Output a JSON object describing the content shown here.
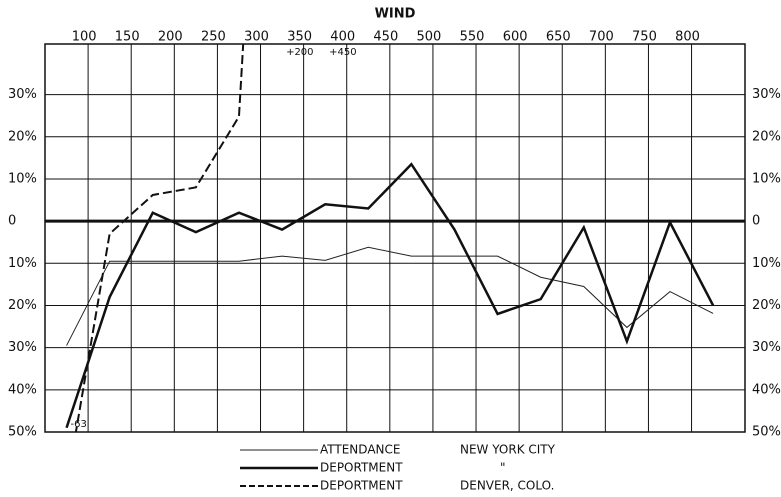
{
  "chart_data": {
    "type": "line",
    "title": "WIND",
    "x": [
      75,
      125,
      175,
      225,
      275,
      325,
      375,
      425,
      475,
      525,
      575,
      625,
      675,
      725,
      775,
      825
    ],
    "xlim": [
      50,
      862
    ],
    "xticks": [
      100,
      150,
      200,
      250,
      300,
      350,
      400,
      450,
      500,
      550,
      600,
      650,
      700,
      750,
      800
    ],
    "ylim": [
      -50,
      42
    ],
    "yticks": [
      {
        "value": 30,
        "label": "30%"
      },
      {
        "value": 20,
        "label": "20%"
      },
      {
        "value": 10,
        "label": "10%"
      },
      0,
      {
        "value": -10,
        "label": "10%"
      },
      {
        "value": -20,
        "label": "20%"
      },
      {
        "value": -30,
        "label": "30%"
      },
      {
        "value": -40,
        "label": "40%"
      },
      {
        "value": -50,
        "label": "50%"
      }
    ],
    "grid": true,
    "series": [
      {
        "name": "ATTENDANCE",
        "color": "#222222",
        "linewidth": 1,
        "dashed": false,
        "values": [
          -29.5,
          -9.5,
          -9.5,
          -9.5,
          -9.5,
          -8.3,
          -9.3,
          -6.2,
          -8.3,
          -8.3,
          -8.3,
          -13.3,
          -15.5,
          -25.2,
          -16.7,
          -21.9
        ]
      },
      {
        "name": "DEPORTMENT",
        "color": "#111111",
        "linewidth": 2.5,
        "dashed": false,
        "values": [
          -49,
          -18,
          2,
          -2.6,
          2,
          -2,
          4,
          3,
          13.5,
          -2,
          -22,
          -18.5,
          -1.5,
          -28.5,
          -0.3,
          -20
        ]
      },
      {
        "name": "DEPORTMENT",
        "color": "#111111",
        "linewidth": 2,
        "dashed": true,
        "values": [
          -63,
          -3,
          6.2,
          8,
          24.8,
          200,
          450,
          null,
          null,
          null,
          null,
          null,
          null,
          null,
          null,
          null
        ],
        "value_labels": [
          "-63",
          null,
          null,
          null,
          null,
          "+200",
          "+450",
          null,
          null,
          null,
          null,
          null,
          null,
          null,
          null,
          null
        ]
      }
    ],
    "legend_notes": [
      "NEW YORK CITY",
      "\"",
      "DENVER, COLO."
    ]
  }
}
